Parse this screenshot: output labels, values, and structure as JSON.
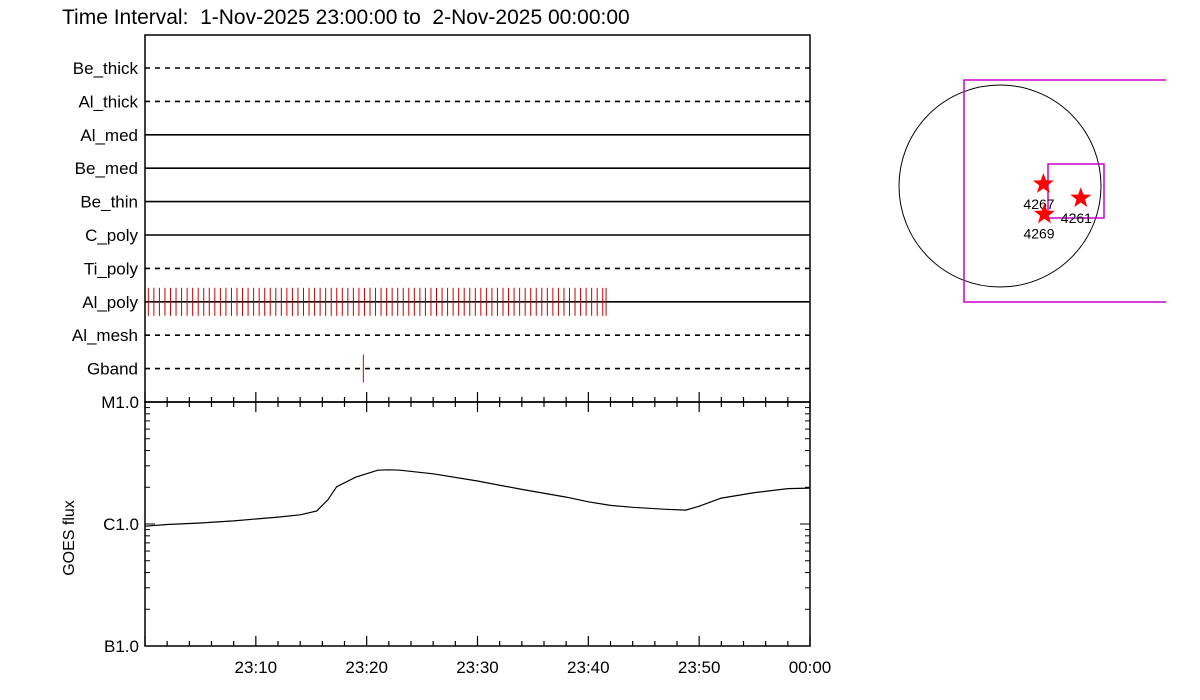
{
  "chart_data": [
    {
      "type": "line",
      "panel": "filter-timeline",
      "title": "Time Interval:  1-Nov-2025 23:00:00 to  2-Nov-2025 00:00:00",
      "filters": [
        {
          "name": "Be_thick",
          "style": "dashed"
        },
        {
          "name": "Al_thick",
          "style": "dashed"
        },
        {
          "name": "Al_med",
          "style": "solid"
        },
        {
          "name": "Be_med",
          "style": "solid"
        },
        {
          "name": "Be_thin",
          "style": "solid"
        },
        {
          "name": "C_poly",
          "style": "solid"
        },
        {
          "name": "Ti_poly",
          "style": "dashed"
        },
        {
          "name": "Al_poly",
          "style": "solid"
        },
        {
          "name": "Al_mesh",
          "style": "dashed"
        },
        {
          "name": "Gband",
          "style": "dashed"
        }
      ],
      "observations": [
        {
          "filter": "Al_poly",
          "x_minutes_after_2300": [
            0.3,
            0.8,
            1.3,
            1.8,
            2.3,
            2.8,
            3.3,
            3.8,
            4.3,
            4.8,
            5.3,
            5.8,
            6.3,
            6.8,
            7.3,
            7.8,
            8.3,
            8.8,
            9.3,
            9.8,
            10.3,
            10.8,
            11.3,
            11.8,
            12.3,
            12.8,
            13.3,
            13.8,
            14.3,
            14.8,
            15.3,
            15.8,
            16.3,
            16.8,
            17.3,
            17.8,
            18.3,
            18.8,
            19.3,
            19.8,
            20.3,
            20.8,
            21.3,
            21.8,
            22.3,
            22.8,
            23.3,
            23.8,
            24.3,
            24.8,
            25.3,
            25.8,
            26.3,
            26.8,
            27.3,
            27.8,
            28.3,
            28.8,
            29.3,
            29.8,
            30.3,
            30.8,
            31.3,
            31.8,
            32.3,
            32.8,
            33.3,
            33.8,
            34.3,
            34.8,
            35.3,
            35.8,
            36.3,
            36.8,
            37.3,
            37.8,
            38.3,
            38.8,
            39.3,
            39.8,
            40.3,
            40.8,
            41.3,
            41.6
          ]
        },
        {
          "filter": "Gband",
          "x_minutes_after_2300": [
            19.7
          ]
        }
      ],
      "color": "#cc0000"
    },
    {
      "type": "line",
      "panel": "goes-flux",
      "ylabel": "GOES flux",
      "ytick_labels": [
        "M1.0",
        "C1.0",
        "B1.0"
      ],
      "yscale": "log",
      "ylim": [
        1e-07,
        1e-05
      ],
      "x_tick_labels": [
        "23:10",
        "23:20",
        "23:30",
        "23:40",
        "23:50",
        "00:00"
      ],
      "xlim_minutes_after_2300": [
        0,
        60
      ],
      "series": [
        {
          "x": [
            0,
            2,
            5,
            8,
            10,
            12,
            14,
            15.5,
            16.5,
            17.3,
            19,
            21,
            22,
            23,
            26,
            30,
            34,
            38,
            40,
            42,
            44,
            47,
            48.8,
            50,
            52,
            55,
            58,
            60
          ],
          "y": [
            9.6e-07,
            9.9e-07,
            1.02e-06,
            1.06e-06,
            1.1e-06,
            1.14e-06,
            1.19e-06,
            1.28e-06,
            1.58e-06,
            2.02e-06,
            2.42e-06,
            2.76e-06,
            2.78e-06,
            2.76e-06,
            2.58e-06,
            2.25e-06,
            1.92e-06,
            1.66e-06,
            1.52e-06,
            1.42e-06,
            1.37e-06,
            1.32e-06,
            1.3e-06,
            1.4e-06,
            1.63e-06,
            1.81e-06,
            1.95e-06,
            1.97e-06
          ]
        }
      ]
    },
    {
      "type": "scatter",
      "panel": "solar-disk-map",
      "points": [
        {
          "label": "4267",
          "x": 0.43,
          "y": 0.02
        },
        {
          "label": "4261",
          "x": 0.8,
          "y": -0.12
        },
        {
          "label": "4269",
          "x": 0.44,
          "y": -0.28
        }
      ],
      "marker_color": "#ff0000",
      "box_color": "#cc00cc"
    }
  ]
}
